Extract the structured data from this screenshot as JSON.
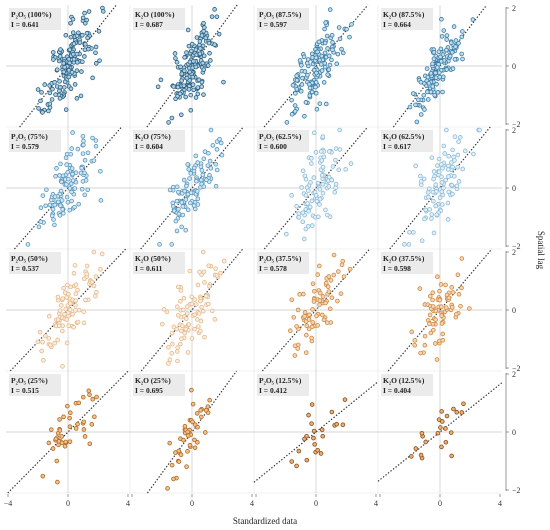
{
  "figure": {
    "xlabel": "Standardized data",
    "ylabel": "Spatial lag",
    "x_ticks": [
      "−4",
      "0",
      "4"
    ],
    "y_ticks": [
      "2",
      "0",
      "−2"
    ],
    "i_prefix": "I = "
  },
  "chart_data": [
    {
      "type": "scatter",
      "title": "P₂O₅ (100%)",
      "i_value": "0.641",
      "color": "#2f5d7c",
      "fill": "#a9d3ea",
      "n": 160,
      "slope": 0.641,
      "spread_x": 0.85,
      "spread_y": 0.55,
      "xlim": [
        -4,
        4
      ],
      "ylim": [
        -2,
        2
      ]
    },
    {
      "type": "scatter",
      "title": "K₂O (100%)",
      "i_value": "0.687",
      "color": "#2f5d7c",
      "fill": "#a9d3ea",
      "n": 160,
      "slope": 0.687,
      "spread_x": 0.85,
      "spread_y": 0.5,
      "xlim": [
        -4,
        4
      ],
      "ylim": [
        -2,
        2
      ]
    },
    {
      "type": "scatter",
      "title": "P₂O₅ (87.5%)",
      "i_value": "0.597",
      "color": "#3b7aa0",
      "fill": "#bfe0f2",
      "n": 140,
      "slope": 0.597,
      "spread_x": 0.85,
      "spread_y": 0.55,
      "xlim": [
        -4,
        4
      ],
      "ylim": [
        -2,
        2
      ]
    },
    {
      "type": "scatter",
      "title": "K₂O (87.5%)",
      "i_value": "0.664",
      "color": "#3b7aa0",
      "fill": "#bfe0f2",
      "n": 140,
      "slope": 0.664,
      "spread_x": 0.8,
      "spread_y": 0.45,
      "xlim": [
        -4,
        4
      ],
      "ylim": [
        -2,
        2
      ]
    },
    {
      "type": "scatter",
      "title": "P₂O₅ (75%)",
      "i_value": "0.579",
      "color": "#5a96bd",
      "fill": "#cfe7f4",
      "n": 110,
      "slope": 0.579,
      "spread_x": 0.85,
      "spread_y": 0.55,
      "xlim": [
        -4,
        4
      ],
      "ylim": [
        -2,
        2
      ]
    },
    {
      "type": "scatter",
      "title": "K₂O (75%)",
      "i_value": "0.604",
      "color": "#5a96bd",
      "fill": "#cfe7f4",
      "n": 110,
      "slope": 0.604,
      "spread_x": 0.85,
      "spread_y": 0.55,
      "xlim": [
        -4,
        4
      ],
      "ylim": [
        -2,
        2
      ]
    },
    {
      "type": "scatter",
      "title": "P₂O₅ (62.5%)",
      "i_value": "0.600",
      "color": "#8dbbd8",
      "fill": "#e3f1f8",
      "n": 100,
      "slope": 0.6,
      "spread_x": 0.85,
      "spread_y": 0.6,
      "xlim": [
        -4,
        4
      ],
      "ylim": [
        -2,
        2
      ]
    },
    {
      "type": "scatter",
      "title": "K₂O (62.5%)",
      "i_value": "0.617",
      "color": "#8dbbd8",
      "fill": "#e3f1f8",
      "n": 100,
      "slope": 0.617,
      "spread_x": 0.85,
      "spread_y": 0.6,
      "xlim": [
        -4,
        4
      ],
      "ylim": [
        -2,
        2
      ]
    },
    {
      "type": "scatter",
      "title": "P₂O₅ (50%)",
      "i_value": "0.537",
      "color": "#e6b98a",
      "fill": "#fbeee0",
      "n": 90,
      "slope": 0.537,
      "spread_x": 0.85,
      "spread_y": 0.6,
      "xlim": [
        -4,
        4
      ],
      "ylim": [
        -2,
        2
      ]
    },
    {
      "type": "scatter",
      "title": "K₂O (50%)",
      "i_value": "0.611",
      "color": "#e6b98a",
      "fill": "#fbeee0",
      "n": 90,
      "slope": 0.611,
      "spread_x": 0.85,
      "spread_y": 0.6,
      "xlim": [
        -4,
        4
      ],
      "ylim": [
        -2,
        2
      ]
    },
    {
      "type": "scatter",
      "title": "P₂O₅ (37.5%)",
      "i_value": "0.578",
      "color": "#d08a43",
      "fill": "#f6d6b5",
      "n": 75,
      "slope": 0.578,
      "spread_x": 0.85,
      "spread_y": 0.55,
      "xlim": [
        -4,
        4
      ],
      "ylim": [
        -2,
        2
      ]
    },
    {
      "type": "scatter",
      "title": "K₂O (37.5%)",
      "i_value": "0.598",
      "color": "#d08a43",
      "fill": "#f6d6b5",
      "n": 75,
      "slope": 0.598,
      "spread_x": 0.8,
      "spread_y": 0.5,
      "xlim": [
        -4,
        4
      ],
      "ylim": [
        -2,
        2
      ]
    },
    {
      "type": "scatter",
      "title": "P₂O₅ (25%)",
      "i_value": "0.515",
      "color": "#b36a22",
      "fill": "#f0c08f",
      "n": 45,
      "slope": 0.515,
      "spread_x": 0.85,
      "spread_y": 0.55,
      "xlim": [
        -4,
        4
      ],
      "ylim": [
        -2,
        2
      ]
    },
    {
      "type": "scatter",
      "title": "K₂O (25%)",
      "i_value": "0.695",
      "color": "#b36a22",
      "fill": "#f0c08f",
      "n": 45,
      "slope": 0.695,
      "spread_x": 0.85,
      "spread_y": 0.5,
      "xlim": [
        -4,
        4
      ],
      "ylim": [
        -2,
        2
      ]
    },
    {
      "type": "scatter",
      "title": "P₂O₅ (12.5%)",
      "i_value": "0.412",
      "color": "#8e4f17",
      "fill": "#e7b07a",
      "n": 22,
      "slope": 0.412,
      "spread_x": 0.9,
      "spread_y": 0.5,
      "xlim": [
        -4,
        4
      ],
      "ylim": [
        -2,
        2
      ]
    },
    {
      "type": "scatter",
      "title": "K₂O (12.5%)",
      "i_value": "0.404",
      "color": "#8e4f17",
      "fill": "#e7b07a",
      "n": 22,
      "slope": 0.404,
      "spread_x": 0.9,
      "spread_y": 0.5,
      "xlim": [
        -4,
        4
      ],
      "ylim": [
        -2,
        2
      ]
    }
  ]
}
